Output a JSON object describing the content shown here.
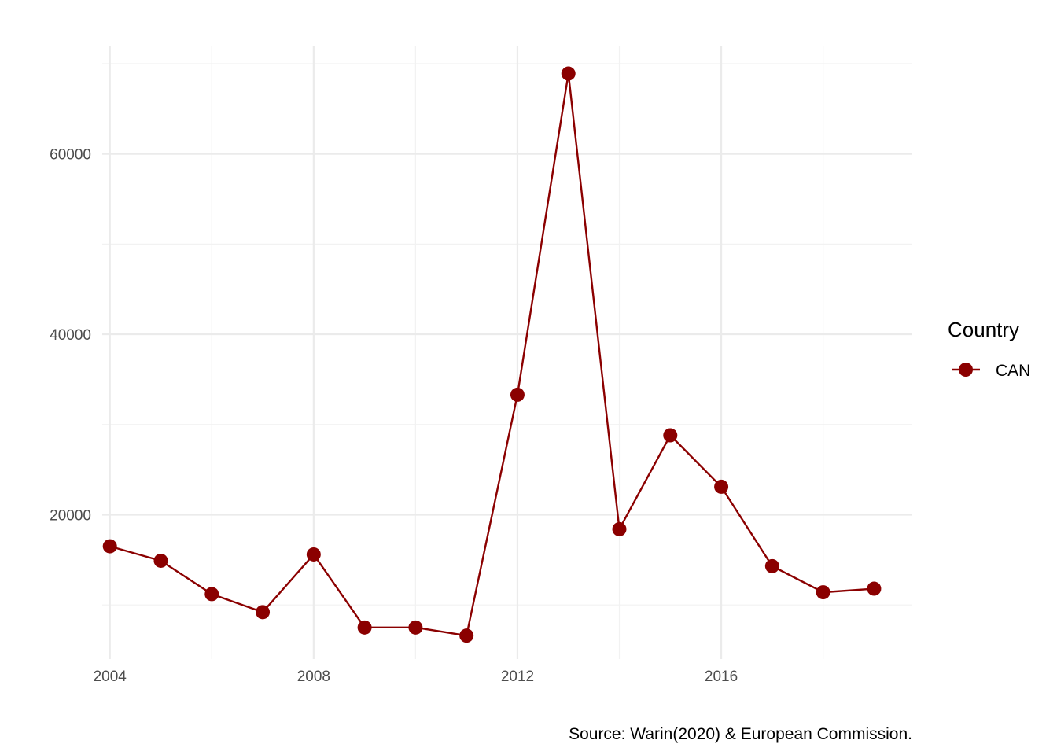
{
  "chart_data": {
    "type": "line",
    "x": [
      2004,
      2005,
      2006,
      2007,
      2008,
      2009,
      2010,
      2011,
      2012,
      2013,
      2014,
      2015,
      2016,
      2017,
      2018,
      2019
    ],
    "series": [
      {
        "name": "CAN",
        "color": "#8b0000",
        "values": [
          16500,
          14900,
          11200,
          9200,
          15600,
          7500,
          7500,
          6600,
          33300,
          68900,
          18400,
          28800,
          23100,
          14300,
          11400,
          11800
        ]
      }
    ],
    "xlim": [
      2003.85,
      2019.75
    ],
    "ylim": [
      4000,
      72000
    ],
    "x_ticks": [
      2004,
      2008,
      2012,
      2016
    ],
    "x_tick_labels": [
      "2004",
      "2008",
      "2012",
      "2016"
    ],
    "x_minor_ticks": [
      2006,
      2010,
      2014,
      2018
    ],
    "y_ticks": [
      20000,
      40000,
      60000
    ],
    "y_tick_labels": [
      "20000",
      "40000",
      "60000"
    ],
    "y_minor_ticks": [
      10000,
      30000,
      50000,
      70000
    ],
    "xlabel": "",
    "ylabel": "",
    "title": "",
    "grid": true,
    "legend": {
      "title": "Country",
      "position": "right"
    },
    "caption": "Source: Warin(2020) & European Commission."
  }
}
